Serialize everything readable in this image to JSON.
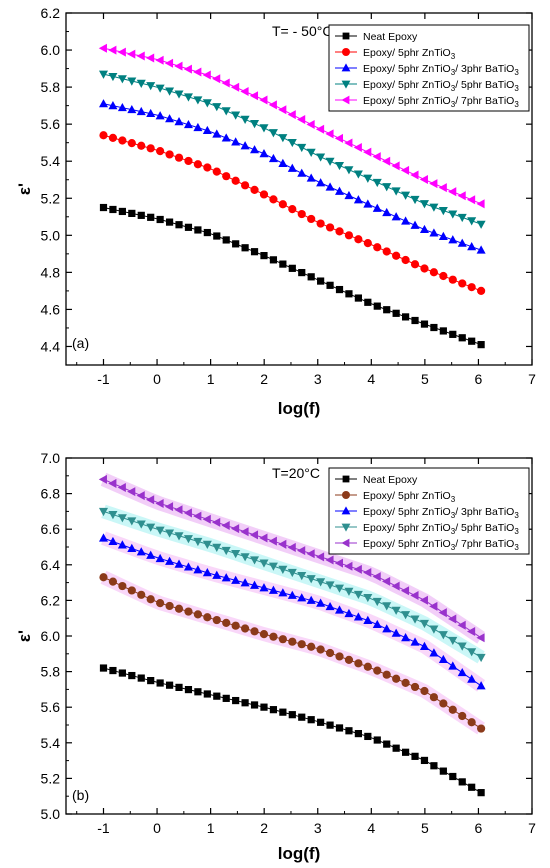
{
  "chart_data": [
    {
      "type": "scatter",
      "panel_label": "(a)",
      "annotation": "T= - 50°C",
      "xlabel": "log(f)",
      "ylabel": "ε'",
      "xlim": [
        -1.7,
        7
      ],
      "ylim": [
        4.3,
        6.2
      ],
      "xticks": [
        "-1",
        "0",
        "1",
        "2",
        "3",
        "4",
        "5",
        "6",
        "7"
      ],
      "yticks": [
        "4.4",
        "4.6",
        "4.8",
        "5.0",
        "5.2",
        "5.4",
        "5.6",
        "5.8",
        "6.0",
        "6.2"
      ],
      "legend_position": "top-right",
      "series": [
        {
          "name": "Neat Epoxy",
          "marker": "square",
          "color": "#000000",
          "x": [
            -1,
            0,
            1,
            2,
            3,
            4,
            5,
            6.05
          ],
          "y": [
            5.15,
            5.09,
            5.01,
            4.89,
            4.76,
            4.63,
            4.52,
            4.41
          ]
        },
        {
          "name": "Epoxy/ 5phr ZnTiO3",
          "marker": "circle",
          "color": "#ff0000",
          "x": [
            -1,
            0,
            1,
            2,
            3,
            4,
            5,
            6.05
          ],
          "y": [
            5.54,
            5.46,
            5.36,
            5.22,
            5.07,
            4.95,
            4.82,
            4.7
          ]
        },
        {
          "name": "Epoxy/ 5phr ZnTiO3/ 3phr BaTiO3",
          "marker": "triangle-up",
          "color": "#0000ff",
          "x": [
            -1,
            0,
            1,
            2,
            3,
            4,
            5,
            6.05
          ],
          "y": [
            5.71,
            5.65,
            5.56,
            5.44,
            5.29,
            5.16,
            5.03,
            4.92
          ]
        },
        {
          "name": "Epoxy/ 5phr ZnTiO3/ 5phr BaTiO3",
          "marker": "triangle-down",
          "color": "#008080",
          "x": [
            -1,
            0,
            1,
            2,
            3,
            4,
            5,
            6.05
          ],
          "y": [
            5.87,
            5.8,
            5.71,
            5.58,
            5.43,
            5.3,
            5.17,
            5.06
          ]
        },
        {
          "name": "Epoxy/ 5phr ZnTiO3/ 7phr BaTiO3",
          "marker": "triangle-left",
          "color": "#ff00ff",
          "x": [
            -1,
            0,
            1,
            2,
            3,
            4,
            5,
            6.05
          ],
          "y": [
            6.01,
            5.95,
            5.86,
            5.73,
            5.58,
            5.44,
            5.3,
            5.17
          ]
        }
      ]
    },
    {
      "type": "scatter",
      "panel_label": "(b)",
      "annotation": "T=20°C",
      "xlabel": "log(f)",
      "ylabel": "ε'",
      "xlim": [
        -1.7,
        7
      ],
      "ylim": [
        5.0,
        7.0
      ],
      "xticks": [
        "-1",
        "0",
        "1",
        "2",
        "3",
        "4",
        "5",
        "6",
        "7"
      ],
      "yticks": [
        "5.0",
        "5.2",
        "5.4",
        "5.6",
        "5.8",
        "6.0",
        "6.2",
        "6.4",
        "6.6",
        "6.8",
        "7.0"
      ],
      "legend_position": "top-right",
      "series": [
        {
          "name": "Neat Epoxy",
          "marker": "square",
          "color": "#000000",
          "x": [
            -1,
            0,
            1,
            2,
            3,
            4,
            5,
            6.05
          ],
          "y": [
            5.82,
            5.74,
            5.67,
            5.6,
            5.52,
            5.43,
            5.3,
            5.12
          ]
        },
        {
          "name": "Epoxy/ 5phr ZnTiO3",
          "marker": "circle",
          "color": "#8b3a1a",
          "x": [
            -1,
            0,
            1,
            2,
            3,
            4,
            5,
            6.05
          ],
          "y": [
            6.33,
            6.19,
            6.1,
            6.01,
            5.93,
            5.82,
            5.69,
            5.48
          ]
        },
        {
          "name": "Epoxy/ 5phr ZnTiO3/ 3phr BaTiO3",
          "marker": "triangle-up",
          "color": "#0000ff",
          "x": [
            -1,
            0,
            1,
            2,
            3,
            4,
            5,
            6.05
          ],
          "y": [
            6.55,
            6.44,
            6.35,
            6.27,
            6.19,
            6.08,
            5.94,
            5.72
          ]
        },
        {
          "name": "Epoxy/ 5phr ZnTiO3/ 5phr BaTiO3",
          "marker": "triangle-down",
          "color": "#2f8f8f",
          "x": [
            -1,
            0,
            1,
            2,
            3,
            4,
            5,
            6.05
          ],
          "y": [
            6.7,
            6.6,
            6.51,
            6.41,
            6.31,
            6.21,
            6.07,
            5.88
          ]
        },
        {
          "name": "Epoxy/ 5phr ZnTiO3/ 7phr BaTiO3",
          "marker": "triangle-left",
          "color": "#9932cc",
          "x": [
            -1,
            0,
            1,
            2,
            3,
            4,
            5,
            6.05
          ],
          "y": [
            6.88,
            6.75,
            6.65,
            6.55,
            6.45,
            6.35,
            6.2,
            5.99
          ]
        }
      ]
    }
  ]
}
